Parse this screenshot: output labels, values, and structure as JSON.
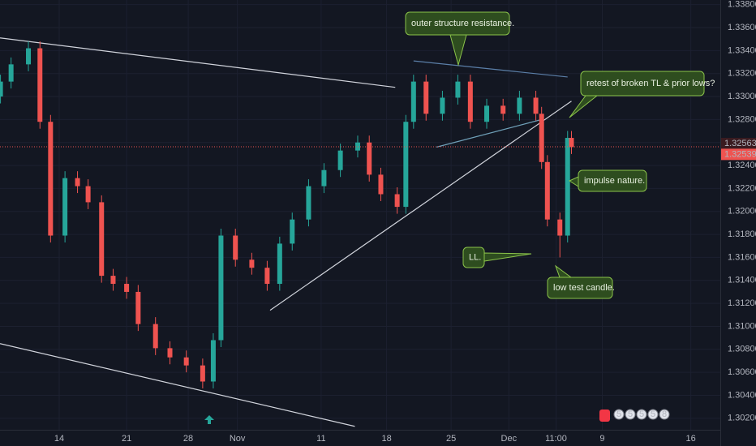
{
  "chart_data": {
    "type": "candlestick",
    "x": [
      -6.1,
      -5,
      -3.2,
      -2,
      -0.9,
      0.6,
      1.9,
      3,
      4.4,
      5.6,
      7,
      8.2,
      10,
      11.5,
      13.2,
      14.9,
      16,
      16.8,
      18.3,
      20,
      21.6,
      22.9,
      24.2,
      25.9,
      27.5,
      29.2,
      31,
      32.2,
      33.4,
      35.1,
      36,
      36.8,
      38.1,
      39.8,
      41.4,
      42.7,
      44.4,
      46.1,
      47.8,
      49.5,
      50.1,
      50.7,
      52,
      52.8,
      53.2
    ],
    "open": [
      1.33,
      1.3313,
      1.3328,
      1.3342,
      1.3278,
      1.3179,
      1.3229,
      1.3222,
      1.3208,
      1.3144,
      1.3137,
      1.313,
      1.3102,
      1.3081,
      1.3073,
      1.3066,
      1.3052,
      1.3088,
      1.3179,
      1.3158,
      1.3151,
      1.3137,
      1.3172,
      1.3193,
      1.3222,
      1.3236,
      1.3253,
      1.326,
      1.3232,
      1.3215,
      1.3204,
      1.3278,
      1.3313,
      1.3285,
      1.3299,
      1.3313,
      1.3278,
      1.3292,
      1.3285,
      1.3299,
      1.3285,
      1.3243,
      1.3193,
      1.3179,
      1.3264
    ],
    "high": [
      1.3319,
      1.3334,
      1.3348,
      1.3348,
      1.3284,
      1.3235,
      1.3235,
      1.3228,
      1.3214,
      1.315,
      1.3143,
      1.3136,
      1.3108,
      1.3087,
      1.3079,
      1.3072,
      1.3094,
      1.3185,
      1.3185,
      1.3164,
      1.3157,
      1.3178,
      1.3199,
      1.3228,
      1.3242,
      1.3259,
      1.3266,
      1.3266,
      1.3238,
      1.3221,
      1.3284,
      1.3319,
      1.3319,
      1.3305,
      1.3319,
      1.3319,
      1.3298,
      1.3298,
      1.3305,
      1.3305,
      1.3291,
      1.3249,
      1.3199,
      1.327,
      1.327
    ],
    "low": [
      1.3294,
      1.3307,
      1.3322,
      1.3272,
      1.3173,
      1.3173,
      1.3216,
      1.3202,
      1.3138,
      1.3131,
      1.3124,
      1.3096,
      1.3075,
      1.3067,
      1.306,
      1.3046,
      1.3046,
      1.3082,
      1.3152,
      1.3145,
      1.3131,
      1.3131,
      1.3166,
      1.3187,
      1.3216,
      1.323,
      1.3247,
      1.3226,
      1.3209,
      1.3198,
      1.3198,
      1.3272,
      1.3279,
      1.3279,
      1.3293,
      1.3272,
      1.3272,
      1.3279,
      1.3279,
      1.3279,
      1.3237,
      1.3187,
      1.316,
      1.3173,
      1.325
    ],
    "close": [
      1.3313,
      1.3328,
      1.3342,
      1.3278,
      1.3179,
      1.3229,
      1.3222,
      1.3208,
      1.3144,
      1.3137,
      1.313,
      1.3102,
      1.3081,
      1.3073,
      1.3066,
      1.3052,
      1.3088,
      1.3179,
      1.3158,
      1.3151,
      1.3137,
      1.3172,
      1.3193,
      1.3222,
      1.3236,
      1.3253,
      1.326,
      1.3232,
      1.3215,
      1.3204,
      1.3278,
      1.3313,
      1.3285,
      1.3299,
      1.3313,
      1.3278,
      1.3292,
      1.3285,
      1.3299,
      1.3285,
      1.3243,
      1.3193,
      1.3179,
      1.3264,
      1.3256
    ],
    "up_color": "#26a69a",
    "down_color": "#ef5350",
    "xlim": [
      -6.15,
      68.66
    ],
    "ylim": [
      1.301,
      1.3384
    ],
    "xticks": [
      {
        "value": 0,
        "label": "14"
      },
      {
        "value": 7,
        "label": "21"
      },
      {
        "value": 13.4,
        "label": "28"
      },
      {
        "value": 18.5,
        "label": "Nov"
      },
      {
        "value": 27.2,
        "label": "11"
      },
      {
        "value": 34.0,
        "label": "18"
      },
      {
        "value": 40.7,
        "label": "25"
      },
      {
        "value": 46.7,
        "label": "Dec"
      },
      {
        "value": 51.6,
        "label": "11:00"
      },
      {
        "value": 56.4,
        "label": "9"
      },
      {
        "value": 65.6,
        "label": "16"
      }
    ],
    "yticks": [
      {
        "value": 1.338,
        "label": "1.33800"
      },
      {
        "value": 1.336,
        "label": "1.33600"
      },
      {
        "value": 1.334,
        "label": "1.33400"
      },
      {
        "value": 1.332,
        "label": "1.33200"
      },
      {
        "value": 1.33,
        "label": "1.33000"
      },
      {
        "value": 1.328,
        "label": "1.32800"
      },
      {
        "value": 1.326,
        "label": "1.32600"
      },
      {
        "value": 1.324,
        "label": "1.32400"
      },
      {
        "value": 1.322,
        "label": "1.32200"
      },
      {
        "value": 1.32,
        "label": "1.32000"
      },
      {
        "value": 1.318,
        "label": "1.31800"
      },
      {
        "value": 1.316,
        "label": "1.31600"
      },
      {
        "value": 1.314,
        "label": "1.31400"
      },
      {
        "value": 1.312,
        "label": "1.31200"
      },
      {
        "value": 1.31,
        "label": "1.31000"
      },
      {
        "value": 1.308,
        "label": "1.30800"
      },
      {
        "value": 1.306,
        "label": "1.30600"
      },
      {
        "value": 1.304,
        "label": "1.30400"
      },
      {
        "value": 1.302,
        "label": "1.30200"
      }
    ],
    "grid": true,
    "price_lines": [
      {
        "value": 1.32563,
        "label": "1.32563",
        "color": "#ef5350"
      },
      {
        "value": 1.32539,
        "label": "1.32539",
        "color": "#ef5350"
      }
    ],
    "trendlines": [
      {
        "x": [
          -6.15,
          34.9
        ],
        "y": [
          1.3351,
          1.3308
        ],
        "color": "#d1d4dc"
      },
      {
        "x": [
          -6.15,
          30.7
        ],
        "y": [
          1.3085,
          1.3013
        ],
        "color": "#d1d4dc"
      },
      {
        "x": [
          21.9,
          53.2
        ],
        "y": [
          1.3114,
          1.3296
        ],
        "color": "#d1d4dc"
      },
      {
        "x": [
          36.8,
          52.8
        ],
        "y": [
          1.3331,
          1.3317
        ],
        "color": "#5b7fa8"
      },
      {
        "x": [
          39.2,
          50.1
        ],
        "y": [
          1.3256,
          1.328
        ],
        "color": "#6fa0b8"
      }
    ],
    "annotations": [
      "outer structure resistance.",
      "retest of broken TL & prior lows?",
      "impulse nature.",
      "LL.",
      "low test candle."
    ],
    "event_markers": [
      "5",
      "5",
      "5",
      "5",
      "8"
    ]
  }
}
